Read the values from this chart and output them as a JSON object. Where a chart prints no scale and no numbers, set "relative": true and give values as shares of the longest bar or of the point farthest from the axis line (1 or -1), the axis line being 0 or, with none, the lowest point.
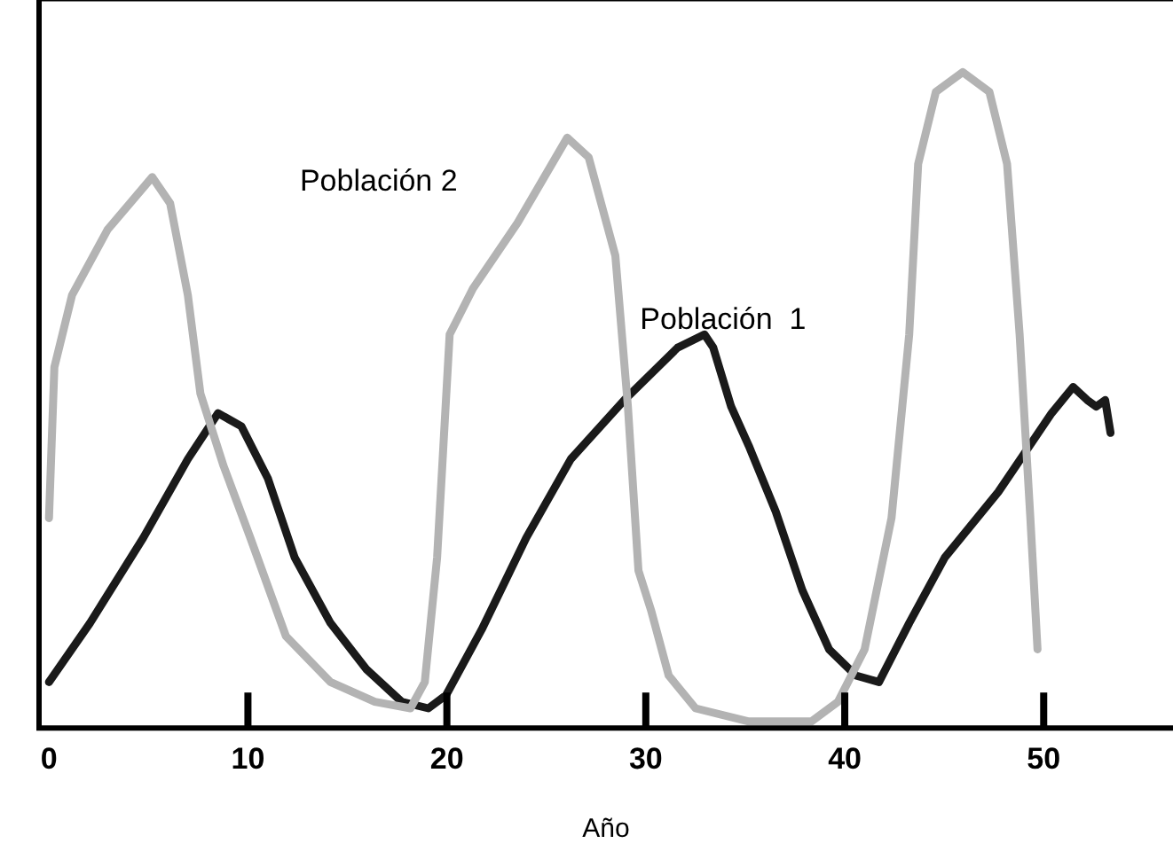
{
  "chart_data": {
    "type": "line",
    "xlabel": "Año",
    "relative": true,
    "grid": false,
    "legend": false,
    "marker": "none",
    "line_style": "solid",
    "tick_labels": "x",
    "xlim": [
      -0.5,
      56.5
    ],
    "xticks": [
      0,
      10,
      20,
      30,
      40,
      50
    ],
    "series": [
      {
        "name": "Población 2",
        "color": "#b3b3b3",
        "x": [
          0,
          0.27,
          1.16,
          2.95,
          5.19,
          6.09,
          6.98,
          7.61,
          8.77,
          10.12,
          11.91,
          14.15,
          16.38,
          18.17,
          18.89,
          19.51,
          20.14,
          21.31,
          23.55,
          26.05,
          27.13,
          28.47,
          29.1,
          29.63,
          30.26,
          31.15,
          32.5,
          35.18,
          38.32,
          39.66,
          41.0,
          42.35,
          43.24,
          43.69,
          44.58,
          45.93,
          47.27,
          48.16,
          48.79,
          49.33,
          49.69
        ],
        "values": [
          0.32,
          0.55,
          0.66,
          0.76,
          0.84,
          0.8,
          0.66,
          0.51,
          0.4,
          0.29,
          0.14,
          0.07,
          0.04,
          0.03,
          0.07,
          0.26,
          0.6,
          0.67,
          0.77,
          0.9,
          0.87,
          0.72,
          0.49,
          0.24,
          0.18,
          0.08,
          0.03,
          0.01,
          0.01,
          0.04,
          0.12,
          0.32,
          0.6,
          0.86,
          0.97,
          1.0,
          0.97,
          0.86,
          0.6,
          0.32,
          0.12
        ]
      },
      {
        "name": "Población  1",
        "color": "#1a1a1a",
        "x": [
          0,
          2.06,
          4.74,
          6.98,
          8.5,
          9.67,
          11.01,
          12.35,
          14.15,
          15.94,
          17.73,
          19.07,
          19.96,
          21.75,
          23.99,
          26.23,
          28.92,
          31.6,
          32.95,
          33.39,
          34.29,
          35.18,
          36.53,
          37.87,
          39.21,
          40.56,
          41.72,
          43.24,
          45.03,
          47.72,
          50.4,
          51.48,
          52.19,
          52.64,
          53.09,
          53.36
        ],
        "values": [
          0.07,
          0.16,
          0.29,
          0.41,
          0.48,
          0.46,
          0.38,
          0.26,
          0.16,
          0.09,
          0.04,
          0.03,
          0.05,
          0.15,
          0.29,
          0.41,
          0.5,
          0.58,
          0.6,
          0.58,
          0.49,
          0.43,
          0.33,
          0.21,
          0.12,
          0.08,
          0.07,
          0.16,
          0.26,
          0.36,
          0.48,
          0.52,
          0.5,
          0.49,
          0.5,
          0.45
        ]
      }
    ]
  }
}
